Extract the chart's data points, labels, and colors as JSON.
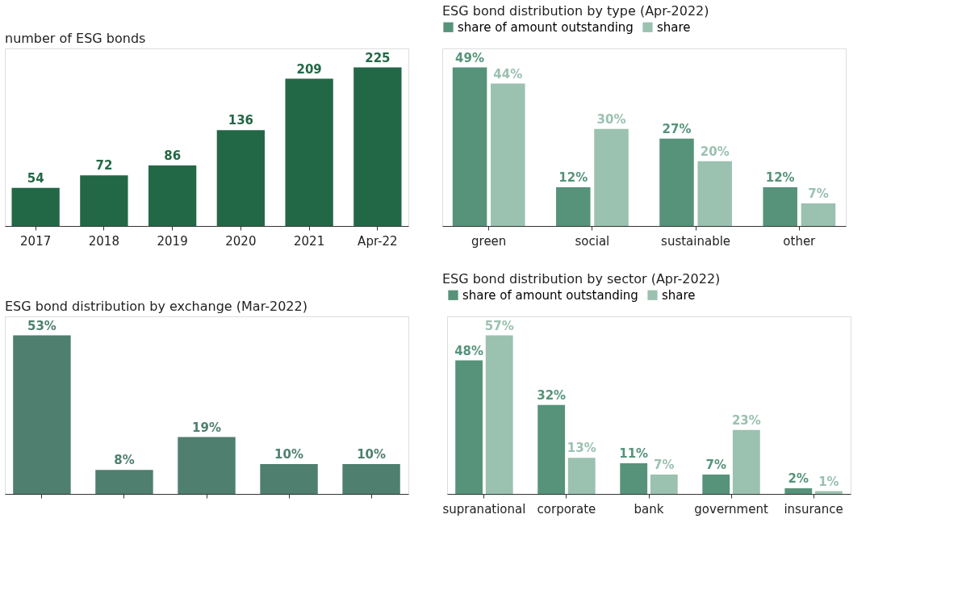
{
  "chart_data": [
    {
      "type": "bar",
      "title": "number of ESG bonds",
      "categories": [
        "2017",
        "2018",
        "2019",
        "2020",
        "2021",
        "Apr-22"
      ],
      "values": [
        54,
        72,
        86,
        136,
        209,
        225
      ],
      "color": "#236846",
      "data_labels": true
    },
    {
      "type": "bar",
      "title": "ESG bond distribution by type (Apr-2022)",
      "categories": [
        "green",
        "social",
        "sustainable",
        "other"
      ],
      "legend": "top",
      "series": [
        {
          "name": "share of amount outstanding",
          "color": "#56937a",
          "values": [
            49,
            12,
            27,
            12
          ],
          "value_labels": [
            "49%",
            "12%",
            "27%",
            "12%"
          ]
        },
        {
          "name": "share",
          "color": "#9bc1b0",
          "values": [
            44,
            30,
            20,
            7
          ],
          "value_labels": [
            "44%",
            "30%",
            "20%",
            "7%"
          ]
        }
      ]
    },
    {
      "type": "bar",
      "title": "ESG bond distribution by exchange (Mar-2022)",
      "categories": [
        null,
        null,
        null,
        null,
        null
      ],
      "values": [
        53,
        8,
        19,
        10,
        10
      ],
      "color": "#4f7f6e",
      "value_labels": [
        "53%",
        "8%",
        "19%",
        "10%",
        "10%"
      ]
    },
    {
      "type": "bar",
      "title": "ESG bond distribution by sector (Apr-2022)",
      "categories": [
        "supranational",
        "corporate",
        "bank",
        "government",
        "insurance"
      ],
      "legend": "top",
      "series": [
        {
          "name": "share of amount outstanding",
          "color": "#56937a",
          "values": [
            48,
            32,
            11,
            7,
            2
          ],
          "value_labels": [
            "48%",
            "32%",
            "11%",
            "7%",
            "2%"
          ]
        },
        {
          "name": "share",
          "color": "#9bc1b0",
          "values": [
            57,
            13,
            7,
            23,
            1
          ],
          "value_labels": [
            "57%",
            "13%",
            "7%",
            "23%",
            "1%"
          ]
        }
      ]
    }
  ]
}
